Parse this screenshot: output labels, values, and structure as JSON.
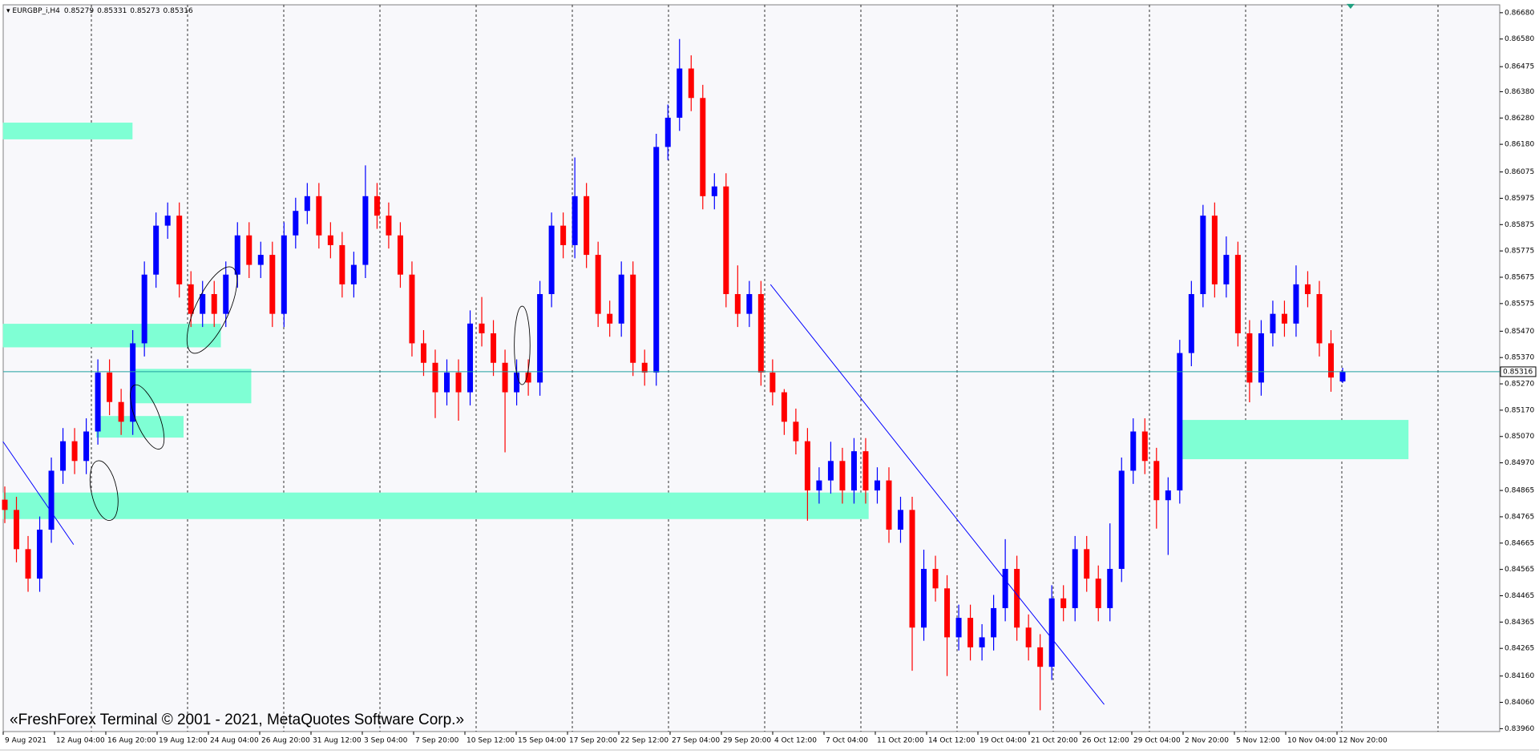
{
  "chart_data": {
    "type": "candlestick",
    "symbol": "EURGBP_i,H4",
    "watermark": "«FreshForex Terminal © 2001 - 2021, MetaQuotes Software Corp.»",
    "up_color": "#0000ff",
    "down_color": "#ff0000",
    "price_line_color": "#20a0a0",
    "ylim": [
      0.83949,
      0.8671
    ],
    "yticks": [
      {
        "value": 0.8668,
        "label": "0.86680"
      },
      {
        "value": 0.8658,
        "label": "0.86580"
      },
      0.86475,
      {
        "value": 0.8638,
        "label": "0.86380"
      },
      {
        "value": 0.8628,
        "label": "0.86280"
      },
      {
        "value": 0.8618,
        "label": "0.86180"
      },
      0.86075,
      0.85975,
      0.85875,
      0.85775,
      0.85675,
      0.85575,
      {
        "value": 0.8547,
        "label": "0.85470"
      },
      {
        "value": 0.8537,
        "label": "0.85370"
      },
      {
        "value": 0.8527,
        "label": "0.85270"
      },
      {
        "value": 0.8517,
        "label": "0.85170"
      },
      {
        "value": 0.8507,
        "label": "0.85070"
      },
      {
        "value": 0.8497,
        "label": "0.84970"
      },
      0.84865,
      0.84765,
      0.84665,
      0.84565,
      0.84465,
      0.84365,
      0.84265,
      {
        "value": 0.8416,
        "label": "0.84160"
      },
      {
        "value": 0.8406,
        "label": "0.84060"
      },
      {
        "value": 0.8396,
        "label": "0.83960"
      }
    ],
    "x_labels": [
      "9 Aug 2021",
      "12 Aug 04:00",
      "16 Aug 20:00",
      "19 Aug 12:00",
      "24 Aug 04:00",
      "26 Aug 20:00",
      "31 Aug 12:00",
      "3 Sep 04:00",
      "7 Sep 20:00",
      "10 Sep 12:00",
      "15 Sep 04:00",
      "17 Sep 20:00",
      "22 Sep 12:00",
      "27 Sep 04:00",
      "29 Sep 20:00",
      "4 Oct 12:00",
      "7 Oct 04:00",
      "11 Oct 20:00",
      "14 Oct 12:00",
      "19 Oct 04:00",
      "21 Oct 20:00",
      "26 Oct 12:00",
      "29 Oct 04:00",
      "2 Nov 20:00",
      "5 Nov 12:00",
      "10 Nov 04:00",
      "12 Nov 20:00"
    ],
    "ohlc": [
      [
        0.8483,
        0.8488,
        0.84741,
        0.84791
      ],
      [
        0.84791,
        0.84841,
        0.84592,
        0.84642
      ],
      [
        0.84642,
        0.84692,
        0.8448,
        0.8453
      ],
      [
        0.8453,
        0.84766,
        0.8448,
        0.84716
      ],
      [
        0.84716,
        0.8499,
        0.84666,
        0.8494
      ],
      [
        0.8494,
        0.85102,
        0.8489,
        0.85052
      ],
      [
        0.85052,
        0.85102,
        0.84927,
        0.84977
      ],
      [
        0.84977,
        0.85139,
        0.84927,
        0.85089
      ],
      [
        0.85089,
        0.85363,
        0.85039,
        0.85313
      ],
      [
        0.85313,
        0.85363,
        0.85151,
        0.85201
      ],
      [
        0.85201,
        0.85251,
        0.85076,
        0.85126
      ],
      [
        0.85126,
        0.85474,
        0.85076,
        0.85424
      ],
      [
        0.85424,
        0.85735,
        0.85374,
        0.85685
      ],
      [
        0.85685,
        0.85921,
        0.85635,
        0.85871
      ],
      [
        0.85871,
        0.85959,
        0.85821,
        0.85909
      ],
      [
        0.85909,
        0.85959,
        0.85598,
        0.85648
      ],
      [
        0.85648,
        0.85698,
        0.85486,
        0.85536
      ],
      [
        0.85536,
        0.85661,
        0.85486,
        0.85611
      ],
      [
        0.85611,
        0.85661,
        0.85486,
        0.85536
      ],
      [
        0.85536,
        0.85735,
        0.85486,
        0.85685
      ],
      [
        0.85685,
        0.85884,
        0.85635,
        0.85834
      ],
      [
        0.85834,
        0.85884,
        0.85672,
        0.85722
      ],
      [
        0.85722,
        0.8581,
        0.85672,
        0.8576
      ],
      [
        0.8576,
        0.8581,
        0.85486,
        0.85536
      ],
      [
        0.85536,
        0.85884,
        0.85486,
        0.85834
      ],
      [
        0.85834,
        0.85977,
        0.85784,
        0.85927
      ],
      [
        0.85927,
        0.86033,
        0.85877,
        0.85983
      ],
      [
        0.85983,
        0.86033,
        0.85784,
        0.85834
      ],
      [
        0.85834,
        0.85884,
        0.85747,
        0.85797
      ],
      [
        0.85797,
        0.85847,
        0.85598,
        0.85648
      ],
      [
        0.85648,
        0.85772,
        0.85598,
        0.85722
      ],
      [
        0.85722,
        0.861,
        0.85672,
        0.85983
      ],
      [
        0.85983,
        0.86033,
        0.85859,
        0.85909
      ],
      [
        0.85909,
        0.85959,
        0.85784,
        0.85834
      ],
      [
        0.85834,
        0.85884,
        0.85635,
        0.85685
      ],
      [
        0.85685,
        0.85735,
        0.85374,
        0.85424
      ],
      [
        0.85424,
        0.85474,
        0.853,
        0.8535
      ],
      [
        0.8535,
        0.854,
        0.8514,
        0.85238
      ],
      [
        0.85238,
        0.85363,
        0.85188,
        0.85313
      ],
      [
        0.85313,
        0.85363,
        0.8513,
        0.85238
      ],
      [
        0.85238,
        0.85549,
        0.85188,
        0.85499
      ],
      [
        0.85499,
        0.856,
        0.85412,
        0.85462
      ],
      [
        0.85462,
        0.85512,
        0.853,
        0.8535
      ],
      [
        0.8535,
        0.854,
        0.8501,
        0.85238
      ],
      [
        0.85238,
        0.85363,
        0.85188,
        0.85313
      ],
      [
        0.85313,
        0.85363,
        0.85225,
        0.85275
      ],
      [
        0.85275,
        0.85661,
        0.85225,
        0.85611
      ],
      [
        0.85611,
        0.85921,
        0.85561,
        0.85871
      ],
      [
        0.85871,
        0.85921,
        0.85747,
        0.85797
      ],
      [
        0.85797,
        0.8613,
        0.85747,
        0.85983
      ],
      [
        0.85983,
        0.86033,
        0.8571,
        0.8576
      ],
      [
        0.8576,
        0.8581,
        0.85486,
        0.85536
      ],
      [
        0.85536,
        0.85586,
        0.85449,
        0.85499
      ],
      [
        0.85499,
        0.85735,
        0.85449,
        0.85685
      ],
      [
        0.85685,
        0.85735,
        0.853,
        0.8535
      ],
      [
        0.8535,
        0.854,
        0.85263,
        0.85313
      ],
      [
        0.85313,
        0.8622,
        0.85263,
        0.8617
      ],
      [
        0.8617,
        0.86331,
        0.8612,
        0.86281
      ],
      [
        0.86281,
        0.8658,
        0.86231,
        0.86468
      ],
      [
        0.86468,
        0.86518,
        0.86306,
        0.86356
      ],
      [
        0.86356,
        0.86406,
        0.85933,
        0.85983
      ],
      [
        0.85983,
        0.8607,
        0.85933,
        0.8602
      ],
      [
        0.8602,
        0.8607,
        0.85561,
        0.85611
      ],
      [
        0.85611,
        0.8572,
        0.85486,
        0.85536
      ],
      [
        0.85536,
        0.85661,
        0.85486,
        0.85611
      ],
      [
        0.85611,
        0.85661,
        0.85263,
        0.85313
      ],
      [
        0.85313,
        0.85363,
        0.85188,
        0.85238
      ],
      [
        0.85238,
        0.8525,
        0.85076,
        0.85126
      ],
      [
        0.85126,
        0.85176,
        0.85002,
        0.85052
      ],
      [
        0.85052,
        0.85102,
        0.8475,
        0.84865
      ],
      [
        0.84865,
        0.84953,
        0.84815,
        0.84903
      ],
      [
        0.84903,
        0.8505,
        0.84853,
        0.84977
      ],
      [
        0.84977,
        0.85027,
        0.84815,
        0.84865
      ],
      [
        0.84865,
        0.85064,
        0.84815,
        0.85014
      ],
      [
        0.85014,
        0.85064,
        0.84815,
        0.84865
      ],
      [
        0.84865,
        0.84953,
        0.84815,
        0.84903
      ],
      [
        0.84903,
        0.84953,
        0.84666,
        0.84716
      ],
      [
        0.84716,
        0.84841,
        0.84666,
        0.84791
      ],
      [
        0.84791,
        0.84841,
        0.8418,
        0.84344
      ],
      [
        0.84344,
        0.8464,
        0.84294,
        0.84567
      ],
      [
        0.84567,
        0.84617,
        0.84443,
        0.84493
      ],
      [
        0.84493,
        0.84543,
        0.8416,
        0.84307
      ],
      [
        0.84307,
        0.84431,
        0.84257,
        0.84381
      ],
      [
        0.84381,
        0.84431,
        0.84219,
        0.84269
      ],
      [
        0.84269,
        0.84357,
        0.84219,
        0.84307
      ],
      [
        0.84307,
        0.84468,
        0.84257,
        0.84418
      ],
      [
        0.84418,
        0.8468,
        0.84368,
        0.84567
      ],
      [
        0.84567,
        0.84617,
        0.84294,
        0.84344
      ],
      [
        0.84344,
        0.84394,
        0.84219,
        0.84269
      ],
      [
        0.84269,
        0.84319,
        0.8403,
        0.84195
      ],
      [
        0.84195,
        0.84505,
        0.84145,
        0.84455
      ],
      [
        0.84455,
        0.84505,
        0.84368,
        0.84418
      ],
      [
        0.84418,
        0.84692,
        0.84368,
        0.84642
      ],
      [
        0.84642,
        0.84692,
        0.8448,
        0.8453
      ],
      [
        0.8453,
        0.8458,
        0.84368,
        0.84418
      ],
      [
        0.84418,
        0.8474,
        0.84368,
        0.84567
      ],
      [
        0.84567,
        0.8499,
        0.84517,
        0.8494
      ],
      [
        0.8494,
        0.85139,
        0.8489,
        0.85089
      ],
      [
        0.85089,
        0.85139,
        0.84927,
        0.84977
      ],
      [
        0.84977,
        0.85027,
        0.8472,
        0.84828
      ],
      [
        0.84828,
        0.84915,
        0.8462,
        0.84865
      ],
      [
        0.84865,
        0.85437,
        0.84815,
        0.85387
      ],
      [
        0.85387,
        0.85661,
        0.85337,
        0.85611
      ],
      [
        0.85611,
        0.8595,
        0.85561,
        0.85909
      ],
      [
        0.85909,
        0.85959,
        0.85598,
        0.85648
      ],
      [
        0.85648,
        0.8583,
        0.85598,
        0.8576
      ],
      [
        0.8576,
        0.8581,
        0.85412,
        0.85462
      ],
      [
        0.85462,
        0.85512,
        0.852,
        0.85275
      ],
      [
        0.85275,
        0.85512,
        0.85225,
        0.85462
      ],
      [
        0.85462,
        0.85586,
        0.85412,
        0.85536
      ],
      [
        0.85536,
        0.85586,
        0.85449,
        0.85499
      ],
      [
        0.85499,
        0.8572,
        0.85449,
        0.85648
      ],
      [
        0.85648,
        0.85698,
        0.85561,
        0.85611
      ],
      [
        0.85611,
        0.85661,
        0.85374,
        0.85424
      ],
      [
        0.85424,
        0.85474,
        0.8524,
        0.85294
      ],
      [
        0.85279,
        0.85331,
        0.85273,
        0.85316
      ]
    ]
  }
}
